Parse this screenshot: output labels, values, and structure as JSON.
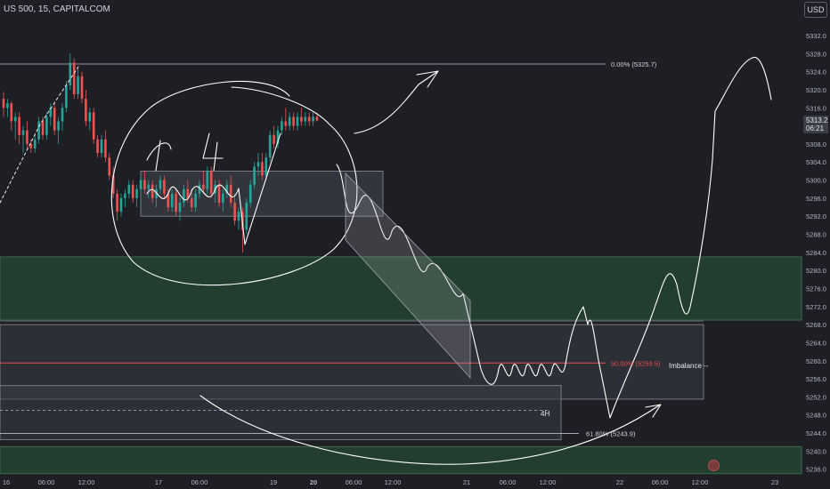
{
  "header": {
    "symbol_title": "US 500, 15, CAPITALCOM"
  },
  "toolbar": {
    "currency": "USD"
  },
  "price_box": {
    "line1": "5313.2",
    "line2": "06:21"
  },
  "colors": {
    "background": "#1e1f24",
    "candle_up": "#26a69a",
    "candle_down": "#ef5350",
    "green_zone": "#24402f",
    "rectangle_fill": "#3b3d45",
    "fib_50_line": "#e84d4d",
    "drawing": "#ffffff"
  },
  "chart_data": {
    "type": "candlestick",
    "title": "US 500, 15, CAPITALCOM",
    "currency": "USD",
    "ylim": [
      5236.0,
      5334.5
    ],
    "y_ticks": [
      5332.0,
      5328.0,
      5324.0,
      5320.0,
      5316.0,
      5312.0,
      5308.0,
      5304.0,
      5300.0,
      5296.0,
      5292.0,
      5288.0,
      5284.0,
      5280.0,
      5276.0,
      5272.0,
      5268.0,
      5264.0,
      5260.0,
      5256.0,
      5252.0,
      5248.0,
      5244.0,
      5240.0,
      5236.0
    ],
    "x_ticks": [
      "16",
      "06:00",
      "12:00",
      "17",
      "06:00",
      "19",
      "20",
      "06:00",
      "12:00",
      "21",
      "06:00",
      "12:00",
      "22",
      "06:00",
      "12:00",
      "23"
    ],
    "last_price": 5313.2,
    "annotations": {
      "fib_0": "0.00% (5325.7)",
      "fib_50": "50.00% (5259.5)",
      "fib_618": "61.80% (5243.9)",
      "imbalance": "Imbalance --",
      "label_4h": "4H"
    },
    "levels": {
      "fib_0": 5325.7,
      "fib_50": 5259.5,
      "fib_618": 5243.9
    },
    "zones": [
      {
        "name": "upper-demand-zone",
        "top": 5283.0,
        "bottom": 5269.0
      },
      {
        "name": "lower-demand-zone",
        "top": 5241.0,
        "bottom": 5235.0
      },
      {
        "name": "imbalance-zone",
        "top": 5268.0,
        "bottom": 5251.5
      },
      {
        "name": "4h-zone",
        "top": 5254.5,
        "bottom": 5242.5
      },
      {
        "name": "consolidation-box",
        "top": 5302.0,
        "bottom": 5292.0
      }
    ],
    "candles_ohlc": [
      [
        5318,
        5319.5,
        5314,
        5316
      ],
      [
        5316,
        5318,
        5314,
        5317
      ],
      [
        5317,
        5317.5,
        5311,
        5313
      ],
      [
        5313,
        5315,
        5309,
        5314
      ],
      [
        5314,
        5315,
        5308,
        5310
      ],
      [
        5310,
        5312,
        5306,
        5311
      ],
      [
        5311,
        5313,
        5307,
        5308
      ],
      [
        5308,
        5309,
        5306,
        5307
      ],
      [
        5307,
        5310,
        5306,
        5309
      ],
      [
        5309,
        5314,
        5308,
        5313
      ],
      [
        5313,
        5314,
        5309,
        5310
      ],
      [
        5310,
        5315,
        5309,
        5314
      ],
      [
        5314,
        5317,
        5312,
        5316
      ],
      [
        5316,
        5317,
        5310,
        5311
      ],
      [
        5311,
        5314,
        5308,
        5313
      ],
      [
        5313,
        5317,
        5311,
        5316
      ],
      [
        5316,
        5322,
        5315,
        5321
      ],
      [
        5321,
        5328,
        5320,
        5326
      ],
      [
        5326,
        5327,
        5318,
        5319
      ],
      [
        5319,
        5325,
        5318,
        5323
      ],
      [
        5323,
        5324,
        5317,
        5318
      ],
      [
        5318,
        5320,
        5312,
        5313
      ],
      [
        5313,
        5316,
        5311,
        5315
      ],
      [
        5315,
        5316,
        5308,
        5309
      ],
      [
        5309,
        5310,
        5305,
        5306
      ],
      [
        5306,
        5310,
        5305,
        5309
      ],
      [
        5309,
        5311,
        5304,
        5305
      ],
      [
        5305,
        5306,
        5300,
        5301
      ],
      [
        5301,
        5303,
        5296,
        5297
      ],
      [
        5297,
        5298,
        5291,
        5293
      ],
      [
        5293,
        5297,
        5292,
        5296
      ],
      [
        5296,
        5298,
        5294,
        5297
      ],
      [
        5297,
        5300,
        5296,
        5299
      ],
      [
        5299,
        5300,
        5295,
        5296
      ],
      [
        5296,
        5299,
        5294,
        5298
      ],
      [
        5298,
        5301,
        5297,
        5300
      ],
      [
        5300,
        5302,
        5297,
        5298
      ],
      [
        5298,
        5300,
        5296,
        5299
      ],
      [
        5299,
        5300,
        5295,
        5296
      ],
      [
        5296,
        5299,
        5294,
        5298
      ],
      [
        5298,
        5301,
        5297,
        5300
      ],
      [
        5300,
        5301,
        5296,
        5297
      ],
      [
        5297,
        5298,
        5293,
        5294
      ],
      [
        5294,
        5298,
        5293,
        5297
      ],
      [
        5297,
        5298,
        5292,
        5293
      ],
      [
        5293,
        5296,
        5291,
        5295
      ],
      [
        5295,
        5299,
        5294,
        5298
      ],
      [
        5298,
        5300,
        5295,
        5296
      ],
      [
        5296,
        5298,
        5293,
        5294
      ],
      [
        5294,
        5298,
        5293,
        5297
      ],
      [
        5297,
        5300,
        5296,
        5299
      ],
      [
        5299,
        5302,
        5297,
        5298
      ],
      [
        5298,
        5303,
        5297,
        5302
      ],
      [
        5302,
        5303,
        5296,
        5297
      ],
      [
        5297,
        5300,
        5295,
        5299
      ],
      [
        5299,
        5300,
        5294,
        5295
      ],
      [
        5295,
        5298,
        5293,
        5297
      ],
      [
        5297,
        5300,
        5296,
        5299
      ],
      [
        5299,
        5301,
        5294,
        5295
      ],
      [
        5295,
        5297,
        5290,
        5291
      ],
      [
        5291,
        5294,
        5289,
        5293
      ],
      [
        5293,
        5294,
        5284,
        5289
      ],
      [
        5289,
        5296,
        5288,
        5295
      ],
      [
        5295,
        5300,
        5294,
        5299
      ],
      [
        5299,
        5304,
        5298,
        5303
      ],
      [
        5303,
        5306,
        5301,
        5304
      ],
      [
        5304,
        5306,
        5300,
        5301
      ],
      [
        5301,
        5306,
        5300,
        5305
      ],
      [
        5305,
        5311,
        5304,
        5310
      ],
      [
        5310,
        5312,
        5307,
        5308
      ],
      [
        5308,
        5312,
        5307,
        5311
      ],
      [
        5311,
        5314,
        5310,
        5313
      ],
      [
        5313,
        5316,
        5311,
        5312
      ],
      [
        5312,
        5315,
        5311,
        5314
      ],
      [
        5314,
        5315,
        5311,
        5312
      ],
      [
        5312,
        5315,
        5311,
        5314
      ],
      [
        5314,
        5316,
        5312,
        5313
      ],
      [
        5313,
        5315,
        5312,
        5314
      ],
      [
        5314,
        5315,
        5312,
        5313
      ],
      [
        5313,
        5315,
        5312,
        5314
      ],
      [
        5314,
        5315,
        5313,
        5313.2
      ]
    ]
  }
}
